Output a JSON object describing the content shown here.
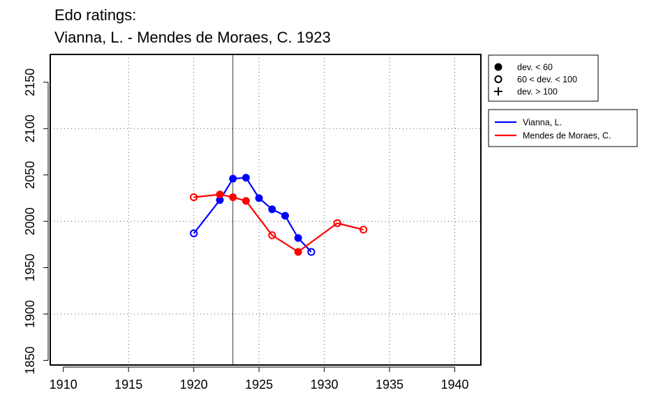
{
  "chart_data": {
    "type": "line",
    "title_lines": [
      "Edo ratings:",
      "Vianna, L. - Mendes de Moraes, C. 1923"
    ],
    "xlabel": "",
    "ylabel": "",
    "xlim": [
      1909,
      1942
    ],
    "ylim": [
      1845,
      2180
    ],
    "xticks": [
      1910,
      1915,
      1920,
      1925,
      1930,
      1935,
      1940
    ],
    "yticks": [
      1850,
      1900,
      1950,
      2000,
      2050,
      2100,
      2150
    ],
    "grid_x": [
      1915,
      1920,
      1925,
      1930,
      1935,
      1940
    ],
    "grid_y": [
      1900,
      2000,
      2100
    ],
    "grid": true,
    "vline": 1923,
    "legend_markers": [
      {
        "label": "dev. < 60",
        "marker": "filled"
      },
      {
        "label": "60 < dev. < 100",
        "marker": "open"
      },
      {
        "label": "dev. > 100",
        "marker": "plus"
      }
    ],
    "legend_placement": "right, outside plot",
    "series": [
      {
        "name": "Vianna, L.",
        "color": "#0000ff",
        "points": [
          {
            "x": 1920,
            "y": 1987,
            "marker": "open"
          },
          {
            "x": 1922,
            "y": 2023,
            "marker": "filled"
          },
          {
            "x": 1923,
            "y": 2046,
            "marker": "filled"
          },
          {
            "x": 1924,
            "y": 2047,
            "marker": "filled"
          },
          {
            "x": 1925,
            "y": 2025,
            "marker": "filled"
          },
          {
            "x": 1926,
            "y": 2013,
            "marker": "filled"
          },
          {
            "x": 1927,
            "y": 2006,
            "marker": "filled"
          },
          {
            "x": 1928,
            "y": 1982,
            "marker": "filled"
          },
          {
            "x": 1929,
            "y": 1967,
            "marker": "open"
          }
        ]
      },
      {
        "name": "Mendes de Moraes, C.",
        "color": "#ff0000",
        "points": [
          {
            "x": 1920,
            "y": 2026,
            "marker": "open"
          },
          {
            "x": 1922,
            "y": 2029,
            "marker": "filled"
          },
          {
            "x": 1923,
            "y": 2026,
            "marker": "filled"
          },
          {
            "x": 1924,
            "y": 2022,
            "marker": "filled"
          },
          {
            "x": 1926,
            "y": 1985,
            "marker": "open"
          },
          {
            "x": 1928,
            "y": 1967,
            "marker": "filled"
          },
          {
            "x": 1931,
            "y": 1998,
            "marker": "open"
          },
          {
            "x": 1933,
            "y": 1991,
            "marker": "open"
          }
        ]
      }
    ]
  }
}
